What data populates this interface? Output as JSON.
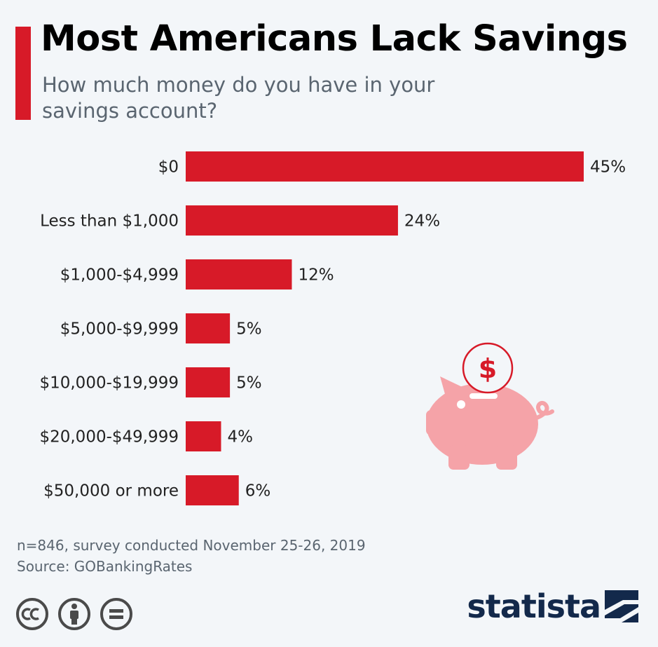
{
  "header": {
    "title": "Most Americans Lack Savings",
    "subtitle": "How much money do you have in your savings account?"
  },
  "colors": {
    "accent": "#d71a28",
    "bar": "#d71a28",
    "piggy": "#f5a3a8",
    "brand": "#13294b",
    "license": "#4a4a4a"
  },
  "chart_data": {
    "type": "bar",
    "orientation": "horizontal",
    "categories": [
      "$0",
      "Less than $1,000",
      "$1,000-$4,999",
      "$5,000-$9,999",
      "$10,000-$19,999",
      "$20,000-$49,999",
      "$50,000 or more"
    ],
    "values": [
      45,
      24,
      12,
      5,
      5,
      4,
      6
    ],
    "value_labels": [
      "45%",
      "24%",
      "12%",
      "5%",
      "5%",
      "4%",
      "6%"
    ],
    "title": "Most Americans Lack Savings",
    "subtitle": "How much money do you have in your savings account?",
    "xlabel": "",
    "ylabel": "",
    "xlim": [
      0,
      45
    ],
    "grid": false,
    "legend": "none"
  },
  "footer": {
    "note": "n=846, survey conducted November 25-26, 2019",
    "source": "Source: GOBankingRates",
    "brand": "statista"
  },
  "icons": {
    "license": [
      "cc-icon",
      "attribution-icon",
      "no-derivatives-icon"
    ],
    "illustration": "piggy-bank-icon",
    "coin": "dollar-coin-icon",
    "brand_mark": "statista-logo-icon"
  },
  "piggy": {
    "coin_symbol": "$"
  }
}
